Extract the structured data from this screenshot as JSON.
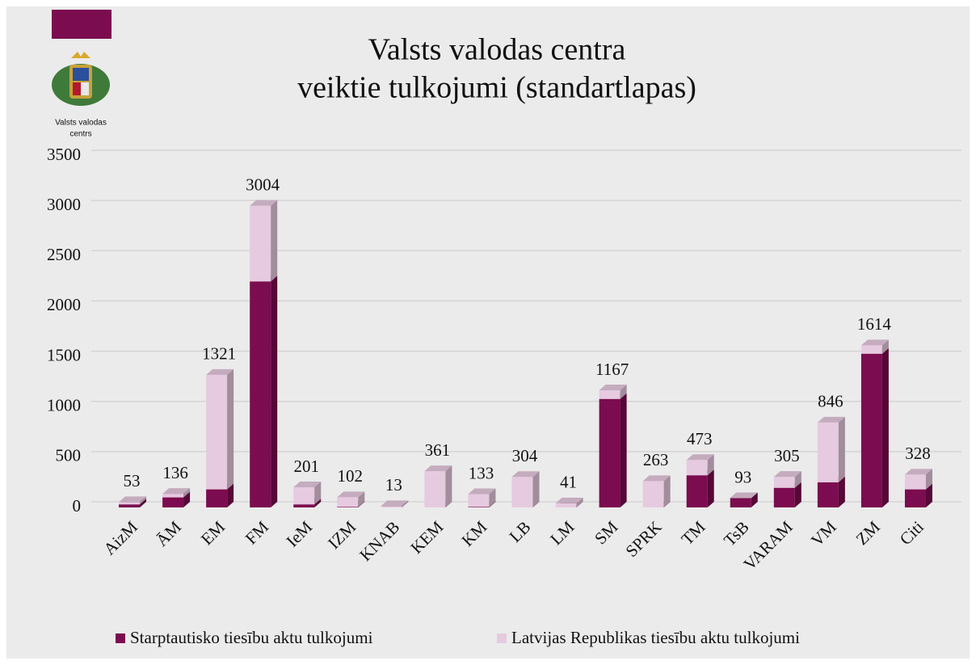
{
  "chart_data": {
    "type": "stacked_bar_3d",
    "title": [
      "Valsts valodas centra",
      "veiktie tulkojumi (standartlapas)"
    ],
    "logo_text": [
      "Valsts valodas",
      "centrs"
    ],
    "categories": [
      "AizM",
      "ĀM",
      "EM",
      "FM",
      "IeM",
      "IZM",
      "KNAB",
      "KEM",
      "KM",
      "LB",
      "LM",
      "SM",
      "SPRK",
      "TM",
      "TsB",
      "VARAM",
      "VM",
      "ZM",
      "Citi"
    ],
    "series": [
      {
        "name": "Starptautisko tiesību aktu tulkojumi",
        "color": "#7b0c4f",
        "values": [
          30,
          100,
          180,
          2250,
          30,
          5,
          0,
          0,
          5,
          0,
          0,
          1080,
          0,
          320,
          93,
          195,
          250,
          1530,
          180
        ]
      },
      {
        "name": "Latvijas Republikas tiesību aktu tulkojumi",
        "color": "#e6cadf",
        "values": [
          23,
          36,
          1141,
          754,
          171,
          97,
          13,
          361,
          128,
          304,
          41,
          87,
          263,
          153,
          0,
          110,
          596,
          84,
          148
        ]
      }
    ],
    "totals": [
      53,
      136,
      1321,
      3004,
      201,
      102,
      13,
      361,
      133,
      304,
      41,
      1167,
      263,
      473,
      93,
      305,
      846,
      1614,
      328
    ],
    "ylim": [
      0,
      3500
    ],
    "yticks": [
      0,
      500,
      1000,
      1500,
      2000,
      2500,
      3000,
      3500
    ],
    "grid": true,
    "legend": "bottom"
  }
}
